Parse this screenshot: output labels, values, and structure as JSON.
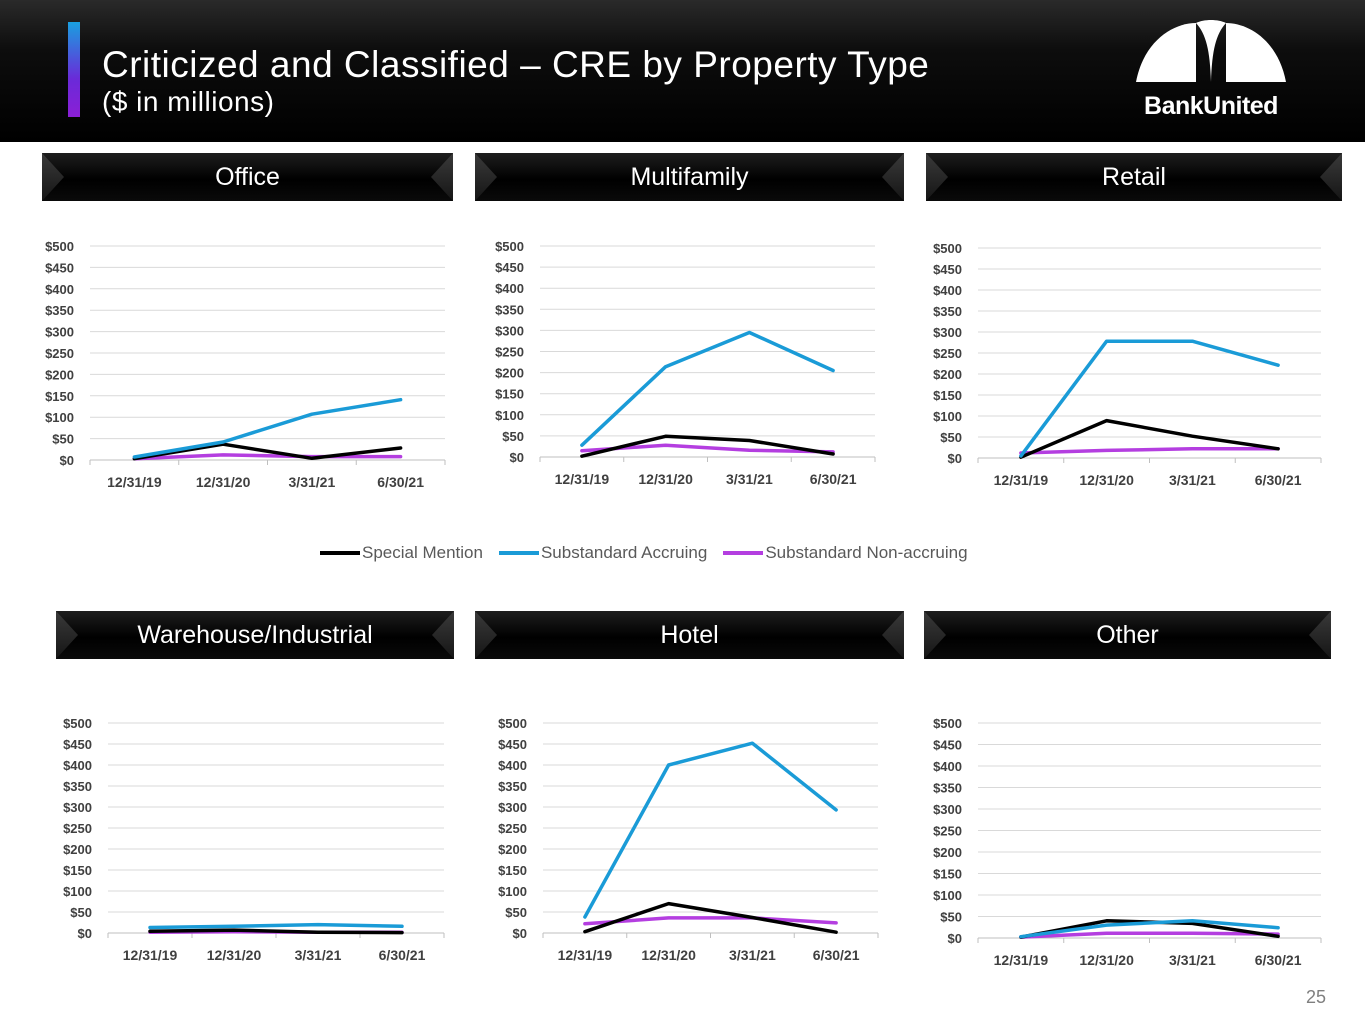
{
  "header": {
    "title": "Criticized and Classified – CRE by Property Type",
    "subtitle": "($ in millions)",
    "logo_text": "BankUnited"
  },
  "legend": [
    {
      "label": "Special Mention",
      "color": "#000000"
    },
    {
      "label": "Substandard Accruing",
      "color": "#1a9bd7"
    },
    {
      "label": "Substandard Non-accruing",
      "color": "#b43ee0"
    }
  ],
  "page_number": "25",
  "chart_data": [
    {
      "type": "line",
      "title": "Office",
      "categories": [
        "12/31/19",
        "12/31/20",
        "3/31/21",
        "6/30/21"
      ],
      "ylim": [
        0,
        500
      ],
      "yticks": [
        "$0",
        "$50",
        "$100",
        "$150",
        "$200",
        "$250",
        "$300",
        "$350",
        "$400",
        "$450",
        "$500"
      ],
      "series": [
        {
          "name": "Special Mention",
          "values": [
            3,
            37,
            4,
            28
          ]
        },
        {
          "name": "Substandard Accruing",
          "values": [
            7,
            42,
            107,
            141
          ]
        },
        {
          "name": "Substandard Non-accruing",
          "values": [
            3,
            12,
            8,
            8
          ]
        }
      ]
    },
    {
      "type": "line",
      "title": "Multifamily",
      "categories": [
        "12/31/19",
        "12/31/20",
        "3/31/21",
        "6/30/21"
      ],
      "ylim": [
        0,
        500
      ],
      "yticks": [
        "$0",
        "$50",
        "$100",
        "$150",
        "$200",
        "$250",
        "$300",
        "$350",
        "$400",
        "$450",
        "$500"
      ],
      "series": [
        {
          "name": "Special Mention",
          "values": [
            2,
            49,
            39,
            7
          ]
        },
        {
          "name": "Substandard Accruing",
          "values": [
            28,
            214,
            295,
            205
          ]
        },
        {
          "name": "Substandard Non-accruing",
          "values": [
            15,
            28,
            16,
            12
          ]
        }
      ]
    },
    {
      "type": "line",
      "title": "Retail",
      "categories": [
        "12/31/19",
        "12/31/20",
        "3/31/21",
        "6/30/21"
      ],
      "ylim": [
        0,
        500
      ],
      "yticks": [
        "$0",
        "$50",
        "$100",
        "$150",
        "$200",
        "$250",
        "$300",
        "$350",
        "$400",
        "$450",
        "$500"
      ],
      "series": [
        {
          "name": "Special Mention",
          "values": [
            2,
            89,
            52,
            22
          ]
        },
        {
          "name": "Substandard Accruing",
          "values": [
            5,
            278,
            278,
            221
          ]
        },
        {
          "name": "Substandard Non-accruing",
          "values": [
            12,
            18,
            22,
            22
          ]
        }
      ]
    },
    {
      "type": "line",
      "title": "Warehouse/Industrial",
      "categories": [
        "12/31/19",
        "12/31/20",
        "3/31/21",
        "6/30/21"
      ],
      "ylim": [
        0,
        500
      ],
      "yticks": [
        "$0",
        "$50",
        "$100",
        "$150",
        "$200",
        "$250",
        "$300",
        "$350",
        "$400",
        "$450",
        "$500"
      ],
      "series": [
        {
          "name": "Special Mention",
          "values": [
            4,
            7,
            2,
            1
          ]
        },
        {
          "name": "Substandard Accruing",
          "values": [
            13,
            16,
            20,
            16
          ]
        },
        {
          "name": "Substandard Non-accruing",
          "values": [
            2,
            3,
            2,
            2
          ]
        }
      ]
    },
    {
      "type": "line",
      "title": "Hotel",
      "categories": [
        "12/31/19",
        "12/31/20",
        "3/31/21",
        "6/30/21"
      ],
      "ylim": [
        0,
        500
      ],
      "yticks": [
        "$0",
        "$50",
        "$100",
        "$150",
        "$200",
        "$250",
        "$300",
        "$350",
        "$400",
        "$450",
        "$500"
      ],
      "series": [
        {
          "name": "Special Mention",
          "values": [
            3,
            70,
            37,
            2
          ]
        },
        {
          "name": "Substandard Accruing",
          "values": [
            38,
            400,
            452,
            293
          ]
        },
        {
          "name": "Substandard Non-accruing",
          "values": [
            22,
            36,
            36,
            24
          ]
        }
      ]
    },
    {
      "type": "line",
      "title": "Other",
      "categories": [
        "12/31/19",
        "12/31/20",
        "3/31/21",
        "6/30/21"
      ],
      "ylim": [
        0,
        500
      ],
      "yticks": [
        "$0",
        "$50",
        "$100",
        "$150",
        "$200",
        "$250",
        "$300",
        "$350",
        "$400",
        "$450",
        "$500"
      ],
      "series": [
        {
          "name": "Special Mention",
          "values": [
            2,
            40,
            34,
            4
          ]
        },
        {
          "name": "Substandard Accruing",
          "values": [
            3,
            30,
            40,
            24
          ]
        },
        {
          "name": "Substandard Non-accruing",
          "values": [
            2,
            11,
            11,
            9
          ]
        }
      ]
    }
  ]
}
